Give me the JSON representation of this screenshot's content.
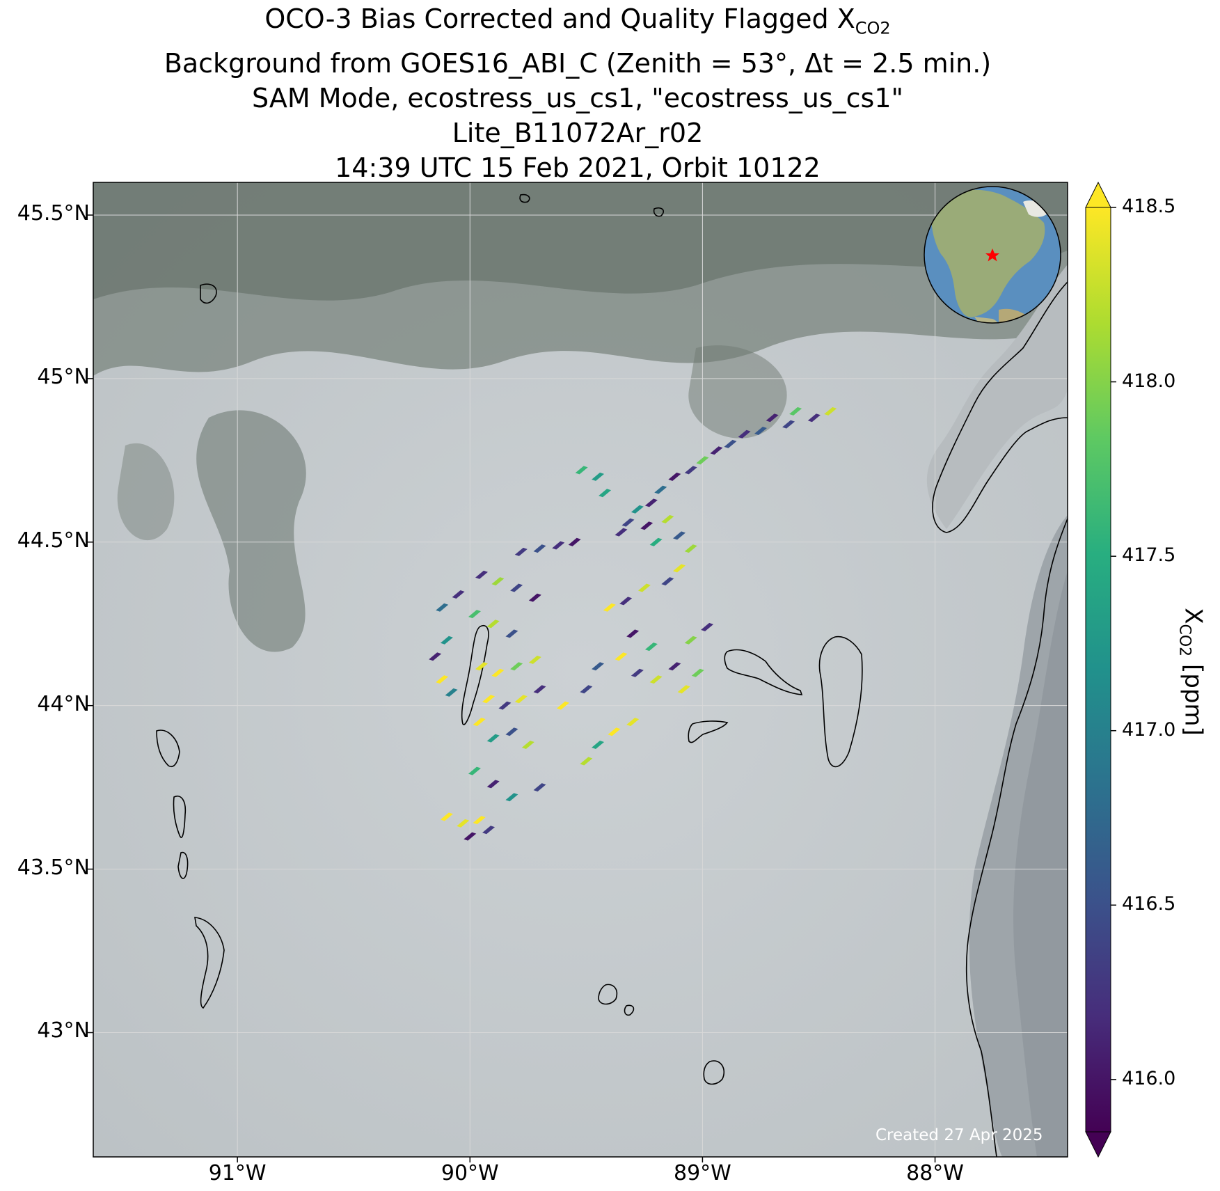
{
  "title": {
    "line1_prefix": "OCO-3 Bias Corrected and Quality Flagged X",
    "line1_sub": "CO2",
    "line2": "Background from GOES16_ABI_C (Zenith = 53°, Δt =  2.5 min.)",
    "line3": "SAM Mode, ecostress_us_cs1, \"ecostress_us_cs1\"",
    "line4": "Lite_B11072Ar_r02",
    "line5": "14:39 UTC 15 Feb 2021, Orbit 10122"
  },
  "map": {
    "lon_range": [
      -91.62,
      -87.43
    ],
    "lat_range": [
      42.62,
      45.6
    ],
    "lat_ticks": [
      {
        "value": 45.5,
        "label": "45.5°N"
      },
      {
        "value": 45.0,
        "label": "45°N"
      },
      {
        "value": 44.5,
        "label": "44.5°N"
      },
      {
        "value": 44.0,
        "label": "44°N"
      },
      {
        "value": 43.5,
        "label": "43.5°N"
      },
      {
        "value": 43.0,
        "label": "43°N"
      }
    ],
    "lon_ticks": [
      {
        "value": -91.0,
        "label": "91°W"
      },
      {
        "value": -90.0,
        "label": "90°W"
      },
      {
        "value": -89.0,
        "label": "89°W"
      },
      {
        "value": -88.0,
        "label": "88°W"
      }
    ],
    "gridlines": true,
    "background": "satellite imagery, snow covered land, Lake Michigan at right",
    "inset_globe": "orthographic globe centered on North America with red star marking target",
    "credit": "Created 27 Apr 2025",
    "colors": {
      "grid": "#d8d8d8",
      "coast": "#000000",
      "land_snow": "#c5cbce",
      "forest": "#6f7a73",
      "lake": "#b9bec1",
      "marker": "#ff0000"
    }
  },
  "colorbar": {
    "min": 415.85,
    "max": 418.5,
    "ticks": [
      "418.5",
      "418.0",
      "417.5",
      "417.0",
      "416.5",
      "416.0"
    ],
    "tick_values": [
      418.5,
      418.0,
      417.5,
      417.0,
      416.5,
      416.0
    ],
    "label_prefix": "X",
    "label_sub": "CO2",
    "label_suffix": " [ppm]",
    "colormap": "viridis",
    "extend": "both"
  },
  "chart_data": {
    "type": "scatter",
    "description_of_values": "XCO2 soundings in ppm at lon/lat",
    "series": [
      {
        "lon": -88.45,
        "lat": 44.9,
        "xco2": 418.3
      },
      {
        "lon": -88.52,
        "lat": 44.88,
        "xco2": 416.2
      },
      {
        "lon": -88.6,
        "lat": 44.9,
        "xco2": 417.8
      },
      {
        "lon": -88.63,
        "lat": 44.86,
        "xco2": 416.4
      },
      {
        "lon": -88.7,
        "lat": 44.88,
        "xco2": 416.1
      },
      {
        "lon": -88.75,
        "lat": 44.84,
        "xco2": 416.6
      },
      {
        "lon": -88.82,
        "lat": 44.83,
        "xco2": 416.2
      },
      {
        "lon": -88.88,
        "lat": 44.8,
        "xco2": 416.5
      },
      {
        "lon": -88.94,
        "lat": 44.78,
        "xco2": 416.1
      },
      {
        "lon": -89.0,
        "lat": 44.75,
        "xco2": 417.9
      },
      {
        "lon": -89.05,
        "lat": 44.72,
        "xco2": 416.3
      },
      {
        "lon": -89.12,
        "lat": 44.7,
        "xco2": 416.0
      },
      {
        "lon": -89.18,
        "lat": 44.66,
        "xco2": 416.8
      },
      {
        "lon": -89.22,
        "lat": 44.62,
        "xco2": 416.1
      },
      {
        "lon": -89.28,
        "lat": 44.6,
        "xco2": 417.2
      },
      {
        "lon": -89.32,
        "lat": 44.56,
        "xco2": 416.4
      },
      {
        "lon": -89.24,
        "lat": 44.55,
        "xco2": 416.0
      },
      {
        "lon": -89.15,
        "lat": 44.57,
        "xco2": 418.2
      },
      {
        "lon": -89.1,
        "lat": 44.52,
        "xco2": 416.6
      },
      {
        "lon": -89.2,
        "lat": 44.5,
        "xco2": 417.5
      },
      {
        "lon": -89.35,
        "lat": 44.53,
        "xco2": 416.2
      },
      {
        "lon": -89.52,
        "lat": 44.72,
        "xco2": 417.6
      },
      {
        "lon": -89.45,
        "lat": 44.7,
        "xco2": 417.3
      },
      {
        "lon": -89.42,
        "lat": 44.65,
        "xco2": 417.4
      },
      {
        "lon": -89.78,
        "lat": 44.47,
        "xco2": 416.3
      },
      {
        "lon": -89.7,
        "lat": 44.48,
        "xco2": 416.5
      },
      {
        "lon": -89.62,
        "lat": 44.49,
        "xco2": 416.2
      },
      {
        "lon": -89.55,
        "lat": 44.5,
        "xco2": 416.0
      },
      {
        "lon": -89.05,
        "lat": 44.48,
        "xco2": 418.1
      },
      {
        "lon": -89.1,
        "lat": 44.42,
        "xco2": 418.4
      },
      {
        "lon": -89.15,
        "lat": 44.38,
        "xco2": 416.4
      },
      {
        "lon": -89.25,
        "lat": 44.36,
        "xco2": 418.3
      },
      {
        "lon": -89.33,
        "lat": 44.32,
        "xco2": 416.2
      },
      {
        "lon": -89.4,
        "lat": 44.3,
        "xco2": 418.5
      },
      {
        "lon": -89.3,
        "lat": 44.22,
        "xco2": 416.0
      },
      {
        "lon": -89.22,
        "lat": 44.18,
        "xco2": 417.6
      },
      {
        "lon": -89.35,
        "lat": 44.15,
        "xco2": 418.5
      },
      {
        "lon": -89.28,
        "lat": 44.1,
        "xco2": 416.3
      },
      {
        "lon": -89.2,
        "lat": 44.08,
        "xco2": 418.3
      },
      {
        "lon": -89.12,
        "lat": 44.12,
        "xco2": 416.1
      },
      {
        "lon": -89.05,
        "lat": 44.2,
        "xco2": 418.0
      },
      {
        "lon": -88.98,
        "lat": 44.24,
        "xco2": 416.2
      },
      {
        "lon": -89.02,
        "lat": 44.1,
        "xco2": 417.9
      },
      {
        "lon": -89.08,
        "lat": 44.05,
        "xco2": 418.4
      },
      {
        "lon": -89.45,
        "lat": 44.12,
        "xco2": 416.6
      },
      {
        "lon": -89.5,
        "lat": 44.05,
        "xco2": 416.4
      },
      {
        "lon": -89.6,
        "lat": 44.0,
        "xco2": 418.5
      },
      {
        "lon": -89.3,
        "lat": 43.95,
        "xco2": 418.4
      },
      {
        "lon": -89.38,
        "lat": 43.92,
        "xco2": 418.5
      },
      {
        "lon": -89.45,
        "lat": 43.88,
        "xco2": 417.4
      },
      {
        "lon": -89.5,
        "lat": 43.83,
        "xco2": 418.2
      },
      {
        "lon": -89.95,
        "lat": 44.4,
        "xco2": 416.2
      },
      {
        "lon": -89.88,
        "lat": 44.38,
        "xco2": 418.1
      },
      {
        "lon": -89.8,
        "lat": 44.36,
        "xco2": 416.4
      },
      {
        "lon": -89.72,
        "lat": 44.33,
        "xco2": 416.0
      },
      {
        "lon": -90.05,
        "lat": 44.34,
        "xco2": 416.2
      },
      {
        "lon": -90.12,
        "lat": 44.3,
        "xco2": 416.8
      },
      {
        "lon": -89.98,
        "lat": 44.28,
        "xco2": 417.7
      },
      {
        "lon": -89.9,
        "lat": 44.25,
        "xco2": 418.2
      },
      {
        "lon": -89.82,
        "lat": 44.22,
        "xco2": 416.5
      },
      {
        "lon": -90.1,
        "lat": 44.2,
        "xco2": 417.2
      },
      {
        "lon": -90.15,
        "lat": 44.15,
        "xco2": 416.1
      },
      {
        "lon": -90.12,
        "lat": 44.08,
        "xco2": 418.5
      },
      {
        "lon": -90.08,
        "lat": 44.04,
        "xco2": 417.0
      },
      {
        "lon": -89.95,
        "lat": 44.12,
        "xco2": 418.4
      },
      {
        "lon": -89.88,
        "lat": 44.1,
        "xco2": 418.5
      },
      {
        "lon": -89.8,
        "lat": 44.12,
        "xco2": 417.9
      },
      {
        "lon": -89.72,
        "lat": 44.14,
        "xco2": 418.3
      },
      {
        "lon": -89.92,
        "lat": 44.02,
        "xco2": 418.5
      },
      {
        "lon": -89.85,
        "lat": 44.0,
        "xco2": 416.3
      },
      {
        "lon": -89.78,
        "lat": 44.02,
        "xco2": 418.4
      },
      {
        "lon": -89.7,
        "lat": 44.05,
        "xco2": 416.2
      },
      {
        "lon": -89.96,
        "lat": 43.95,
        "xco2": 418.5
      },
      {
        "lon": -89.9,
        "lat": 43.9,
        "xco2": 417.3
      },
      {
        "lon": -89.82,
        "lat": 43.92,
        "xco2": 416.5
      },
      {
        "lon": -89.75,
        "lat": 43.88,
        "xco2": 418.2
      },
      {
        "lon": -89.98,
        "lat": 43.8,
        "xco2": 417.6
      },
      {
        "lon": -89.9,
        "lat": 43.76,
        "xco2": 416.1
      },
      {
        "lon": -89.82,
        "lat": 43.72,
        "xco2": 417.2
      },
      {
        "lon": -89.7,
        "lat": 43.75,
        "xco2": 416.4
      },
      {
        "lon": -90.1,
        "lat": 43.66,
        "xco2": 418.5
      },
      {
        "lon": -90.03,
        "lat": 43.64,
        "xco2": 418.4
      },
      {
        "lon": -89.96,
        "lat": 43.65,
        "xco2": 418.5
      },
      {
        "lon": -89.92,
        "lat": 43.62,
        "xco2": 416.3
      },
      {
        "lon": -90.0,
        "lat": 43.6,
        "xco2": 416.0
      }
    ]
  }
}
